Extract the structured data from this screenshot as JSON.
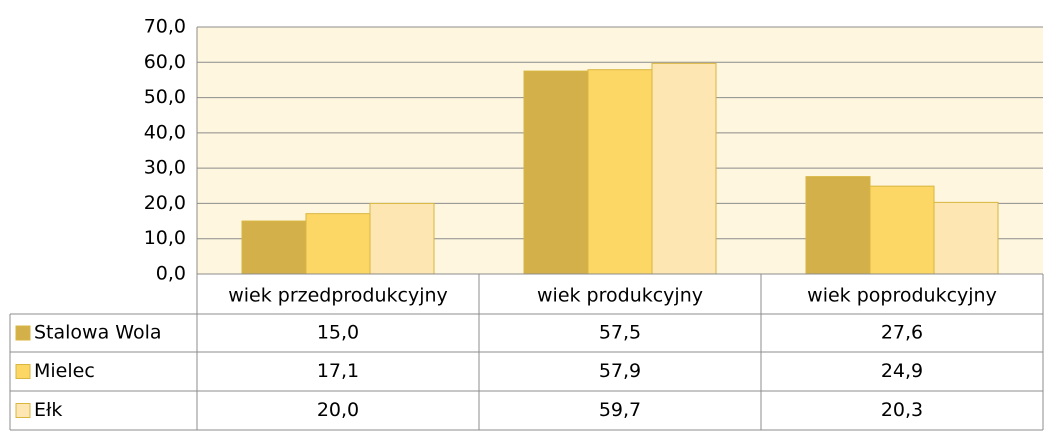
{
  "chart_data": {
    "type": "bar",
    "categories": [
      "wiek przedprodukcyjny",
      "wiek produkcyjny",
      "wiek poprodukcyjny"
    ],
    "series": [
      {
        "name": "Stalowa Wola",
        "color": "#d4b04a",
        "values": [
          15.0,
          57.5,
          27.6
        ],
        "value_labels": [
          "15,0",
          "57,5",
          "27,6"
        ]
      },
      {
        "name": "Mielec",
        "color": "#fdd766",
        "values": [
          17.1,
          57.9,
          24.9
        ],
        "value_labels": [
          "17,1",
          "57,9",
          "24,9"
        ]
      },
      {
        "name": "Ełk",
        "color": "#fde6b2",
        "values": [
          20.0,
          59.7,
          20.3
        ],
        "value_labels": [
          "20,0",
          "59,7",
          "20,3"
        ]
      }
    ],
    "ylim": [
      0,
      70
    ],
    "yticks": [
      {
        "value": 0,
        "label": "0,0"
      },
      {
        "value": 10,
        "label": "10,0"
      },
      {
        "value": 20,
        "label": "20,0"
      },
      {
        "value": 30,
        "label": "30,0"
      },
      {
        "value": 40,
        "label": "40,0"
      },
      {
        "value": 50,
        "label": "50,0"
      },
      {
        "value": 60,
        "label": "60,0"
      },
      {
        "value": 70,
        "label": "70,0"
      }
    ],
    "grid": true,
    "data_table": true
  }
}
